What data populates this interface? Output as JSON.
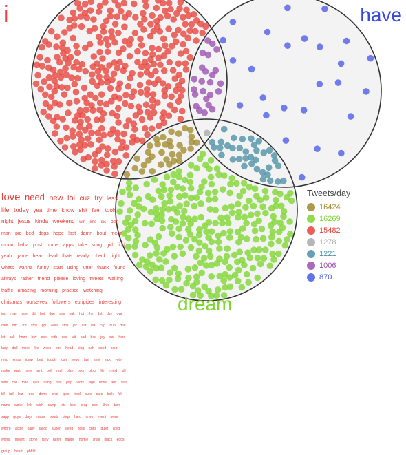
{
  "labels": {
    "i": "i",
    "have": "have",
    "dream": "dream"
  },
  "legend": {
    "title": "Tweets/day",
    "items": [
      {
        "value": "16424",
        "color": "#a08a2a",
        "region": "i-dream"
      },
      {
        "value": "16269",
        "color": "#7cd62e",
        "region": "dream"
      },
      {
        "value": "15482",
        "color": "#e8413a",
        "region": "i"
      },
      {
        "value": "1278",
        "color": "#a9a9a9",
        "region": "i-have-dream"
      },
      {
        "value": "1221",
        "color": "#4a90a4",
        "region": "have-dream"
      },
      {
        "value": "1006",
        "color": "#9b4fb0",
        "region": "i-have"
      },
      {
        "value": "870",
        "color": "#4a5ae8",
        "region": "have"
      }
    ]
  },
  "word_cloud": [
    {
      "text": "love",
      "size": 15
    },
    {
      "text": "need",
      "size": 13
    },
    {
      "text": "new",
      "size": 11
    },
    {
      "text": "lol",
      "size": 11
    },
    {
      "text": "cuz",
      "size": 10
    },
    {
      "text": "try",
      "size": 10
    },
    {
      "text": "less",
      "size": 9
    },
    {
      "text": "life",
      "size": 9
    },
    {
      "text": "today",
      "size": 9
    },
    {
      "text": "yea",
      "size": 8
    },
    {
      "text": "time",
      "size": 8
    },
    {
      "text": "know",
      "size": 8
    },
    {
      "text": "shit",
      "size": 8
    },
    {
      "text": "feel",
      "size": 8
    },
    {
      "text": "took",
      "size": 8
    },
    {
      "text": "night",
      "size": 8
    },
    {
      "text": "jesus",
      "size": 8
    },
    {
      "text": "kinda",
      "size": 8
    },
    {
      "text": "weekend",
      "size": 8
    },
    {
      "text": "win",
      "size": 6
    },
    {
      "text": "kno",
      "size": 6
    },
    {
      "text": "dis",
      "size": 6
    },
    {
      "text": "ooh",
      "size": 7
    },
    {
      "text": "man",
      "size": 7
    },
    {
      "text": "pic",
      "size": 7
    },
    {
      "text": "bed",
      "size": 7
    },
    {
      "text": "dogs",
      "size": 7
    },
    {
      "text": "hope",
      "size": 7
    },
    {
      "text": "last",
      "size": 7
    },
    {
      "text": "damn",
      "size": 7
    },
    {
      "text": "bout",
      "size": 7
    },
    {
      "text": "mean",
      "size": 7
    },
    {
      "text": "moon",
      "size": 7
    },
    {
      "text": "haha",
      "size": 7
    },
    {
      "text": "post",
      "size": 7
    },
    {
      "text": "home",
      "size": 7
    },
    {
      "text": "apps",
      "size": 7
    },
    {
      "text": "take",
      "size": 7
    },
    {
      "text": "song",
      "size": 7
    },
    {
      "text": "girl",
      "size": 7
    },
    {
      "text": "find",
      "size": 7
    },
    {
      "text": "yeah",
      "size": 7
    },
    {
      "text": "game",
      "size": 7
    },
    {
      "text": "hear",
      "size": 7
    },
    {
      "text": "dead",
      "size": 7
    },
    {
      "text": "thats",
      "size": 7
    },
    {
      "text": "ready",
      "size": 7
    },
    {
      "text": "check",
      "size": 7
    },
    {
      "text": "right",
      "size": 7
    },
    {
      "text": "whats",
      "size": 7
    },
    {
      "text": "wanna",
      "size": 7
    },
    {
      "text": "funny",
      "size": 7
    },
    {
      "text": "start",
      "size": 7
    },
    {
      "text": "using",
      "size": 7
    },
    {
      "text": "utter",
      "size": 7
    },
    {
      "text": "thank",
      "size": 7
    },
    {
      "text": "found",
      "size": 7
    },
    {
      "text": "always",
      "size": 7
    },
    {
      "text": "rather",
      "size": 7
    },
    {
      "text": "friend",
      "size": 7
    },
    {
      "text": "please",
      "size": 7
    },
    {
      "text": "loving",
      "size": 7
    },
    {
      "text": "tweets",
      "size": 7
    },
    {
      "text": "waiting",
      "size": 7
    },
    {
      "text": "traffic",
      "size": 7
    },
    {
      "text": "amazing",
      "size": 7
    },
    {
      "text": "morning",
      "size": 7
    },
    {
      "text": "practice",
      "size": 7
    },
    {
      "text": "watching",
      "size": 7
    },
    {
      "text": "christmas",
      "size": 7
    },
    {
      "text": "ourselves",
      "size": 7
    },
    {
      "text": "followers",
      "size": 7
    },
    {
      "text": "euripides",
      "size": 7
    },
    {
      "text": "interesting",
      "size": 7
    },
    {
      "text": "top",
      "size": 5
    },
    {
      "text": "man",
      "size": 5
    },
    {
      "text": "age",
      "size": 5
    },
    {
      "text": "thi",
      "size": 5
    },
    {
      "text": "bot",
      "size": 5
    },
    {
      "text": "due",
      "size": 5
    },
    {
      "text": "ass",
      "size": 5
    },
    {
      "text": "oak",
      "size": 5
    },
    {
      "text": "hot",
      "size": 5
    },
    {
      "text": "thn",
      "size": 5
    },
    {
      "text": "1st",
      "size": 5
    },
    {
      "text": "day",
      "size": 5
    },
    {
      "text": "ova",
      "size": 5
    },
    {
      "text": "cam",
      "size": 5
    },
    {
      "text": "dm",
      "size": 5
    },
    {
      "text": "3rd",
      "size": 5
    },
    {
      "text": "sms",
      "size": 5
    },
    {
      "text": "ppl",
      "size": 5
    },
    {
      "text": "wow",
      "size": 5
    },
    {
      "text": "sms",
      "size": 5
    },
    {
      "text": "jac",
      "size": 5
    },
    {
      "text": "cat",
      "size": 5
    },
    {
      "text": "dia",
      "size": 5
    },
    {
      "text": "cup",
      "size": 5
    },
    {
      "text": "dun",
      "size": 5
    },
    {
      "text": "min",
      "size": 5
    },
    {
      "text": "lot",
      "size": 5
    },
    {
      "text": "ask",
      "size": 5
    },
    {
      "text": "hmm",
      "size": 5
    },
    {
      "text": "btw",
      "size": 5
    },
    {
      "text": "soo",
      "size": 5
    },
    {
      "text": "with",
      "size": 5
    },
    {
      "text": "soo",
      "size": 5
    },
    {
      "text": "wit",
      "size": 5
    },
    {
      "text": "bad",
      "size": 5
    },
    {
      "text": "box",
      "size": 5
    },
    {
      "text": "joy",
      "size": 5
    },
    {
      "text": "eat",
      "size": 5
    },
    {
      "text": "here",
      "size": 5
    },
    {
      "text": "lady",
      "size": 5
    },
    {
      "text": "doll",
      "size": 5
    },
    {
      "text": "mine",
      "size": 5
    },
    {
      "text": "fire",
      "size": 5
    },
    {
      "text": "week",
      "size": 5
    },
    {
      "text": "emi",
      "size": 5
    },
    {
      "text": "head",
      "size": 5
    },
    {
      "text": "sing",
      "size": 5
    },
    {
      "text": "nah",
      "size": 5
    },
    {
      "text": "send",
      "size": 5
    },
    {
      "text": "hour",
      "size": 5
    },
    {
      "text": "read",
      "size": 5
    },
    {
      "text": "xmas",
      "size": 5
    },
    {
      "text": "jump",
      "size": 5
    },
    {
      "text": "bed",
      "size": 5
    },
    {
      "text": "tough",
      "size": 5
    },
    {
      "text": "josh",
      "size": 5
    },
    {
      "text": "news",
      "size": 5
    },
    {
      "text": "tast",
      "size": 5
    },
    {
      "text": "sent",
      "size": 5
    },
    {
      "text": "sick",
      "size": 5
    },
    {
      "text": "vote",
      "size": 5
    },
    {
      "text": "make",
      "size": 5
    },
    {
      "text": "wait",
      "size": 5
    },
    {
      "text": "mine",
      "size": 5
    },
    {
      "text": "aint",
      "size": 5
    },
    {
      "text": "poll",
      "size": 5
    },
    {
      "text": "real",
      "size": 5
    },
    {
      "text": "plan",
      "size": 5
    },
    {
      "text": "poor",
      "size": 5
    },
    {
      "text": "blog",
      "size": 5
    },
    {
      "text": "film",
      "size": 5
    },
    {
      "text": "mind",
      "size": 5
    },
    {
      "text": "kill",
      "size": 5
    },
    {
      "text": "side",
      "size": 5
    },
    {
      "text": "call",
      "size": 5
    },
    {
      "text": "mao",
      "size": 5
    },
    {
      "text": "quiz",
      "size": 5
    },
    {
      "text": "hang",
      "size": 5
    },
    {
      "text": "3fat",
      "size": 5
    },
    {
      "text": "yelp",
      "size": 5
    },
    {
      "text": "work",
      "size": 5
    },
    {
      "text": "sign",
      "size": 5
    },
    {
      "text": "hose",
      "size": 5
    },
    {
      "text": "text",
      "size": 5
    },
    {
      "text": "slot",
      "size": 5
    },
    {
      "text": "till",
      "size": 5
    },
    {
      "text": "fall",
      "size": 5
    },
    {
      "text": "lolz",
      "size": 5
    },
    {
      "text": "road",
      "size": 5
    },
    {
      "text": "dome",
      "size": 5
    },
    {
      "text": "chat",
      "size": 5
    },
    {
      "text": "ipas",
      "size": 5
    },
    {
      "text": "food",
      "size": 5
    },
    {
      "text": "pure",
      "size": 5
    },
    {
      "text": "cars",
      "size": 5
    },
    {
      "text": "tuck",
      "size": 5
    },
    {
      "text": "felt",
      "size": 5
    },
    {
      "text": "name",
      "size": 5
    },
    {
      "text": "woke",
      "size": 5
    },
    {
      "text": "link",
      "size": 5
    },
    {
      "text": "wish",
      "size": 5
    },
    {
      "text": "camp",
      "size": 5
    },
    {
      "text": "letr",
      "size": 5
    },
    {
      "text": "kept",
      "size": 5
    },
    {
      "text": "crap",
      "size": 5
    },
    {
      "text": "cool",
      "size": 5
    },
    {
      "text": "3hrs",
      "size": 5
    },
    {
      "text": "tam",
      "size": 5
    },
    {
      "text": "sapp",
      "size": 5
    },
    {
      "text": "guys",
      "size": 5
    },
    {
      "text": "days",
      "size": 5
    },
    {
      "text": "mass",
      "size": 5
    },
    {
      "text": "bomb",
      "size": 5
    },
    {
      "text": "bbqs",
      "size": 5
    },
    {
      "text": "hard",
      "size": 5
    },
    {
      "text": "drive",
      "size": 5
    },
    {
      "text": "event",
      "size": 5
    },
    {
      "text": "never",
      "size": 5
    },
    {
      "text": "whore",
      "size": 5
    },
    {
      "text": "actor",
      "size": 5
    },
    {
      "text": "baby",
      "size": 5
    },
    {
      "text": "jacob",
      "size": 5
    },
    {
      "text": "super",
      "size": 5
    },
    {
      "text": "sleep",
      "size": 5
    },
    {
      "text": "dolls",
      "size": 5
    },
    {
      "text": "chris",
      "size": 5
    },
    {
      "text": "quiet",
      "size": 5
    },
    {
      "text": "lloyd",
      "size": 5
    },
    {
      "text": "words",
      "size": 5
    },
    {
      "text": "mount",
      "size": 5
    },
    {
      "text": "stone",
      "size": 5
    },
    {
      "text": "larry",
      "size": 5
    },
    {
      "text": "hunn",
      "size": 5
    },
    {
      "text": "happy",
      "size": 5
    },
    {
      "text": "homie",
      "size": 5
    },
    {
      "text": "snail",
      "size": 5
    },
    {
      "text": "black",
      "size": 5
    },
    {
      "text": "eggs",
      "size": 5
    },
    {
      "text": "group",
      "size": 5
    },
    {
      "text": "heart",
      "size": 5
    },
    {
      "text": "phhht",
      "size": 5
    }
  ]
}
